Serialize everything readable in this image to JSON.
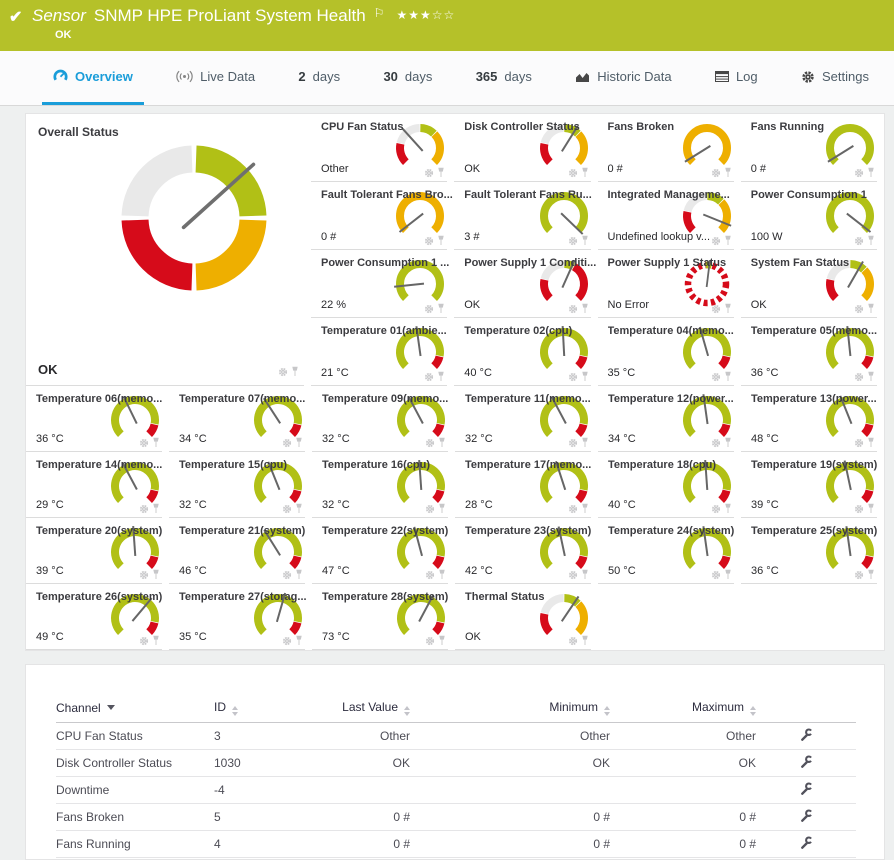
{
  "colors": {
    "green": "#b1c016",
    "amber": "#eeaf00",
    "red": "#d60b1a",
    "gray_segment": "#e9e9e9",
    "needle": "#6f6f6f",
    "blue": "#1a9dd9",
    "header_bar": "#b5c129",
    "tile_border": "#dcdcdc"
  },
  "header": {
    "kind": "Sensor",
    "title": "SNMP HPE ProLiant System Health",
    "status": "OK",
    "priority_filled": 3,
    "priority_total": 5
  },
  "tabs": [
    {
      "label": "Overview",
      "icon": "gauge-icon",
      "active": true
    },
    {
      "label": "Live Data",
      "icon": "live-data-icon"
    },
    {
      "num": "2",
      "label": "days"
    },
    {
      "num": "30",
      "label": "days"
    },
    {
      "num": "365",
      "label": "days"
    },
    {
      "label": "Historic Data",
      "icon": "historic-chart-icon"
    },
    {
      "label": "Log",
      "icon": "log-icon"
    },
    {
      "label": "Settings",
      "icon": "settings-gear-icon"
    }
  ],
  "overall": {
    "title": "Overall Status",
    "value": "OK",
    "gauge": {
      "type": "big4",
      "needle": 48
    }
  },
  "right_tiles": [
    {
      "title": "CPU Fan Status",
      "value": "Other",
      "gauge": {
        "type": "lookup4",
        "needle": -42
      }
    },
    {
      "title": "Disk Controller Status",
      "value": "OK",
      "gauge": {
        "type": "lookup4",
        "needle": 32
      }
    },
    {
      "title": "Fans Broken",
      "value": "0 #",
      "gauge": {
        "type": "solid_amber",
        "needle": -122
      }
    },
    {
      "title": "Fans Running",
      "value": "0 #",
      "gauge": {
        "type": "solid_green",
        "needle": -122
      }
    },
    {
      "title": "Fault Tolerant Fans Bro...",
      "value": "0 #",
      "gauge": {
        "type": "solid_amber",
        "needle": -128
      }
    },
    {
      "title": "Fault Tolerant Fans Ru...",
      "value": "3 #",
      "gauge": {
        "type": "solid_green",
        "needle": 134
      }
    },
    {
      "title": "Integrated Manageme...",
      "value": "Undefined lookup v...",
      "gauge": {
        "type": "lookup4",
        "needle": 112
      }
    },
    {
      "title": "Power Consumption 1",
      "value": "100 W",
      "gauge": {
        "type": "solid_green",
        "needle": 128
      }
    },
    {
      "title": "Power Consumption 1 ...",
      "value": "22 %",
      "gauge": {
        "type": "solid_green",
        "needle": -96
      }
    },
    {
      "title": "Power Supply 1 Conditi...",
      "value": "OK",
      "gauge": {
        "type": "pscond",
        "needle": 24
      }
    },
    {
      "title": "Power Supply 1 Status",
      "value": "No Error",
      "gauge": {
        "type": "dashed",
        "needle": 7
      }
    },
    {
      "title": "System Fan Status",
      "value": "OK",
      "gauge": {
        "type": "lookup4",
        "needle": 30
      }
    },
    {
      "title": "Temperature 01(ambie...",
      "value": "21 °C",
      "gauge": {
        "type": "temp",
        "needle": -8
      }
    },
    {
      "title": "Temperature 02(cpu)",
      "value": "40 °C",
      "gauge": {
        "type": "temp",
        "needle": -3
      }
    },
    {
      "title": "Temperature 04(memo...",
      "value": "35 °C",
      "gauge": {
        "type": "temp",
        "needle": -16
      }
    },
    {
      "title": "Temperature 05(memo...",
      "value": "36 °C",
      "gauge": {
        "type": "temp",
        "needle": -6
      }
    }
  ],
  "bottom_tiles": [
    {
      "title": "Temperature 06(memo...",
      "value": "36 °C",
      "gauge": {
        "type": "temp",
        "needle": -26
      }
    },
    {
      "title": "Temperature 07(memo...",
      "value": "34 °C",
      "gauge": {
        "type": "temp",
        "needle": -33
      }
    },
    {
      "title": "Temperature 09(memo...",
      "value": "32 °C",
      "gauge": {
        "type": "temp",
        "needle": -28
      }
    },
    {
      "title": "Temperature 11(memo...",
      "value": "32 °C",
      "gauge": {
        "type": "temp",
        "needle": -28
      }
    },
    {
      "title": "Temperature 12(power...",
      "value": "34 °C",
      "gauge": {
        "type": "temp",
        "needle": -8
      }
    },
    {
      "title": "Temperature 13(power...",
      "value": "48 °C",
      "gauge": {
        "type": "temp",
        "needle": -22
      }
    },
    {
      "title": "Temperature 14(memo...",
      "value": "29 °C",
      "gauge": {
        "type": "temp",
        "needle": -28
      }
    },
    {
      "title": "Temperature 15(cpu)",
      "value": "32 °C",
      "gauge": {
        "type": "temp",
        "needle": -22
      }
    },
    {
      "title": "Temperature 16(cpu)",
      "value": "32 °C",
      "gauge": {
        "type": "temp",
        "needle": -4
      }
    },
    {
      "title": "Temperature 17(memo...",
      "value": "28 °C",
      "gauge": {
        "type": "temp",
        "needle": -18
      }
    },
    {
      "title": "Temperature 18(cpu)",
      "value": "40 °C",
      "gauge": {
        "type": "temp",
        "needle": -4
      }
    },
    {
      "title": "Temperature 19(system)",
      "value": "39 °C",
      "gauge": {
        "type": "temp",
        "needle": -12
      }
    },
    {
      "title": "Temperature 20(system)",
      "value": "39 °C",
      "gauge": {
        "type": "temp",
        "needle": -4
      }
    },
    {
      "title": "Temperature 21(system)",
      "value": "46 °C",
      "gauge": {
        "type": "temp",
        "needle": -32
      }
    },
    {
      "title": "Temperature 22(system)",
      "value": "47 °C",
      "gauge": {
        "type": "temp",
        "needle": -15
      }
    },
    {
      "title": "Temperature 23(system)",
      "value": "42 °C",
      "gauge": {
        "type": "temp",
        "needle": -12
      }
    },
    {
      "title": "Temperature 24(system)",
      "value": "50 °C",
      "gauge": {
        "type": "temp",
        "needle": -8
      }
    },
    {
      "title": "Temperature 25(system)",
      "value": "36 °C",
      "gauge": {
        "type": "temp",
        "needle": -8
      }
    },
    {
      "title": "Temperature 26(system)",
      "value": "49 °C",
      "gauge": {
        "type": "temp",
        "needle": 40
      }
    },
    {
      "title": "Temperature 27(storag...",
      "value": "35 °C",
      "gauge": {
        "type": "temp",
        "needle": 16
      }
    },
    {
      "title": "Temperature 28(system)",
      "value": "73 °C",
      "gauge": {
        "type": "temp",
        "needle": 28
      }
    },
    {
      "title": "Thermal Status",
      "value": "OK",
      "gauge": {
        "type": "lookup4",
        "needle": 34
      }
    }
  ],
  "channel_table": {
    "headers": [
      {
        "label": "Channel",
        "sort": "desc"
      },
      {
        "label": "ID",
        "sort": "both"
      },
      {
        "label": "Last Value",
        "sort": "both"
      },
      {
        "label": "Minimum",
        "sort": "both"
      },
      {
        "label": "Maximum",
        "sort": "both"
      }
    ],
    "rows": [
      {
        "channel": "CPU Fan Status",
        "id": "3",
        "last_value": "Other",
        "minimum": "Other",
        "maximum": "Other"
      },
      {
        "channel": "Disk Controller Status",
        "id": "1030",
        "last_value": "OK",
        "minimum": "OK",
        "maximum": "OK"
      },
      {
        "channel": "Downtime",
        "id": "-4",
        "last_value": "",
        "minimum": "",
        "maximum": ""
      },
      {
        "channel": "Fans Broken",
        "id": "5",
        "last_value": "0 #",
        "minimum": "0 #",
        "maximum": "0 #"
      },
      {
        "channel": "Fans Running",
        "id": "4",
        "last_value": "0 #",
        "minimum": "0 #",
        "maximum": "0 #"
      }
    ]
  }
}
